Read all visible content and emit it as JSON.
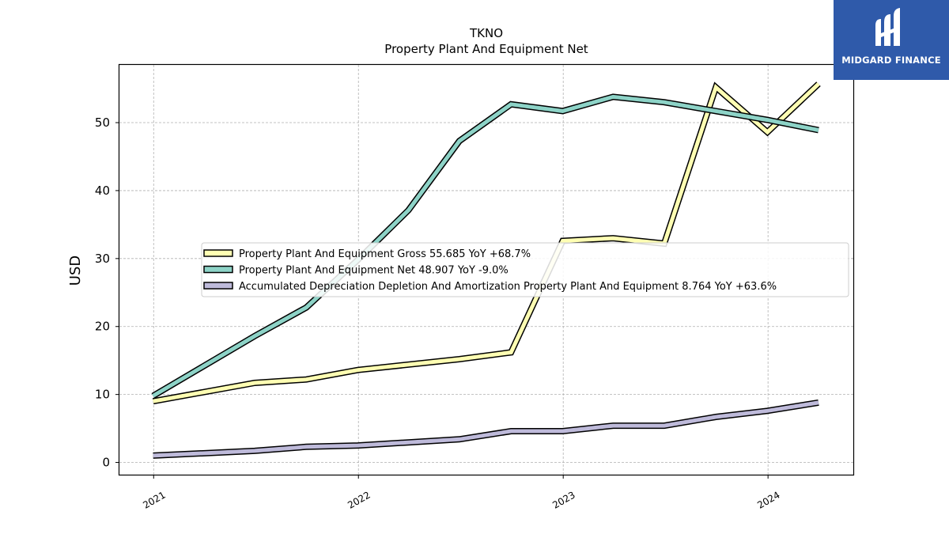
{
  "chart_data": {
    "type": "line",
    "title": "TKNO",
    "subtitle": "Property Plant And Equipment Net",
    "xlabel": "",
    "ylabel": "USD",
    "xlim": [
      "2020-11-01",
      "2024-06-01"
    ],
    "ylim": [
      -1.8,
      58.5
    ],
    "yticks": [
      0,
      10,
      20,
      30,
      40,
      50
    ],
    "xticks": [
      {
        "date": "2021-01-01",
        "label": "2021"
      },
      {
        "date": "2022-01-01",
        "label": "2022"
      },
      {
        "date": "2023-01-01",
        "label": "2023"
      },
      {
        "date": "2024-01-01",
        "label": "2024"
      }
    ],
    "grid": true,
    "legend_position": "center",
    "series": [
      {
        "name": "Property Plant And Equipment Gross",
        "legend_label": "Property Plant And Equipment Gross  55.685 YoY +68.7%",
        "color": "#ffffb3",
        "points": [
          {
            "x": "2020-12-31",
            "y": 9.0
          },
          {
            "x": "2021-06-30",
            "y": 11.7
          },
          {
            "x": "2021-09-30",
            "y": 12.2
          },
          {
            "x": "2021-12-31",
            "y": 13.6
          },
          {
            "x": "2022-06-30",
            "y": 15.2
          },
          {
            "x": "2022-09-30",
            "y": 16.2
          },
          {
            "x": "2022-12-31",
            "y": 32.6
          },
          {
            "x": "2023-03-31",
            "y": 33.0
          },
          {
            "x": "2023-06-30",
            "y": 32.2
          },
          {
            "x": "2023-09-30",
            "y": 55.2
          },
          {
            "x": "2023-12-31",
            "y": 48.6
          },
          {
            "x": "2024-03-31",
            "y": 55.7
          }
        ]
      },
      {
        "name": "Property Plant And Equipment Net",
        "legend_label": "Property Plant And Equipment Net  48.907 YoY -9.0%",
        "color": "#8dd3c7",
        "points": [
          {
            "x": "2020-12-31",
            "y": 9.8
          },
          {
            "x": "2021-06-30",
            "y": 18.6
          },
          {
            "x": "2021-09-30",
            "y": 22.8
          },
          {
            "x": "2021-12-31",
            "y": 29.8
          },
          {
            "x": "2022-03-31",
            "y": 37.1
          },
          {
            "x": "2022-06-30",
            "y": 47.3
          },
          {
            "x": "2022-09-30",
            "y": 52.7
          },
          {
            "x": "2022-12-31",
            "y": 51.7
          },
          {
            "x": "2023-03-31",
            "y": 53.8
          },
          {
            "x": "2023-06-30",
            "y": 53.0
          },
          {
            "x": "2023-09-30",
            "y": 51.7
          },
          {
            "x": "2023-12-31",
            "y": 50.4
          },
          {
            "x": "2024-03-31",
            "y": 48.9
          }
        ]
      },
      {
        "name": "Accumulated Depreciation Depletion And Amortization Property Plant And Equipment",
        "legend_label": "Accumulated Depreciation Depletion And Amortization Property Plant And Equipment  8.764 YoY +63.6%",
        "color": "#bebada",
        "points": [
          {
            "x": "2020-12-31",
            "y": 1.0
          },
          {
            "x": "2021-06-30",
            "y": 1.7
          },
          {
            "x": "2021-09-30",
            "y": 2.3
          },
          {
            "x": "2021-12-31",
            "y": 2.5
          },
          {
            "x": "2022-06-30",
            "y": 3.4
          },
          {
            "x": "2022-09-30",
            "y": 4.6
          },
          {
            "x": "2022-12-31",
            "y": 4.6
          },
          {
            "x": "2023-03-31",
            "y": 5.4
          },
          {
            "x": "2023-06-30",
            "y": 5.4
          },
          {
            "x": "2023-09-30",
            "y": 6.7
          },
          {
            "x": "2023-12-31",
            "y": 7.6
          },
          {
            "x": "2024-03-31",
            "y": 8.8
          }
        ]
      }
    ]
  },
  "watermark": {
    "text": "MIDGARD FINANCE",
    "background": "#2f5aaa",
    "icon": "midgard-logo-icon"
  }
}
